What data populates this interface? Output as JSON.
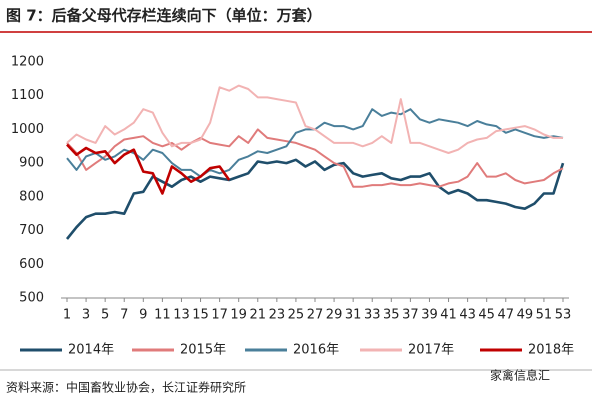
{
  "chart_data": {
    "type": "line",
    "title": "图 7：后备父母代存栏连续向下（单位：万套）",
    "source": "资料来源：中国畜牧业协会，长江证券研究所",
    "watermark": "家禽信息汇",
    "x": [
      1,
      2,
      3,
      4,
      5,
      6,
      7,
      8,
      9,
      10,
      11,
      12,
      13,
      14,
      15,
      16,
      17,
      18,
      19,
      20,
      21,
      22,
      23,
      24,
      25,
      26,
      27,
      28,
      29,
      30,
      31,
      32,
      33,
      34,
      35,
      36,
      37,
      38,
      39,
      40,
      41,
      42,
      43,
      44,
      45,
      46,
      47,
      48,
      49,
      50,
      51,
      52,
      53
    ],
    "xlim": [
      1,
      53
    ],
    "xticks": [
      1,
      3,
      5,
      7,
      9,
      11,
      13,
      15,
      17,
      19,
      21,
      23,
      25,
      27,
      29,
      31,
      33,
      35,
      37,
      39,
      41,
      43,
      45,
      47,
      49,
      51,
      53
    ],
    "ylim": [
      500,
      1200
    ],
    "yticks": [
      500,
      600,
      700,
      800,
      900,
      1000,
      1100,
      1200
    ],
    "legend": "bottom",
    "series": [
      {
        "name": "2014年",
        "color": "#1f4e6b",
        "width": 2.6,
        "values": [
          675,
          710,
          740,
          750,
          750,
          755,
          750,
          810,
          815,
          860,
          845,
          830,
          850,
          860,
          845,
          860,
          855,
          850,
          860,
          870,
          905,
          900,
          905,
          900,
          910,
          890,
          905,
          880,
          895,
          900,
          870,
          860,
          865,
          870,
          855,
          850,
          860,
          860,
          870,
          830,
          810,
          820,
          810,
          790,
          790,
          785,
          780,
          770,
          765,
          780,
          810,
          810,
          900
        ]
      },
      {
        "name": "2015年",
        "color": "#e07b7b",
        "width": 2,
        "values": [
          960,
          930,
          880,
          900,
          920,
          950,
          970,
          975,
          980,
          960,
          950,
          960,
          940,
          960,
          975,
          960,
          955,
          950,
          980,
          960,
          1000,
          975,
          970,
          965,
          960,
          950,
          940,
          920,
          900,
          890,
          830,
          830,
          835,
          835,
          840,
          835,
          835,
          840,
          835,
          830,
          840,
          845,
          860,
          900,
          860,
          860,
          870,
          850,
          840,
          845,
          850,
          870,
          885
        ]
      },
      {
        "name": "2016年",
        "color": "#4a7f9a",
        "width": 2,
        "values": [
          915,
          880,
          920,
          930,
          910,
          920,
          940,
          930,
          910,
          940,
          930,
          900,
          880,
          880,
          860,
          880,
          870,
          880,
          910,
          920,
          935,
          930,
          940,
          950,
          990,
          1000,
          1000,
          1020,
          1010,
          1010,
          1000,
          1010,
          1060,
          1040,
          1050,
          1045,
          1060,
          1030,
          1020,
          1030,
          1025,
          1020,
          1010,
          1025,
          1015,
          1010,
          990,
          1000,
          990,
          980,
          975,
          980,
          975
        ]
      },
      {
        "name": "2017年",
        "color": "#f2b3b3",
        "width": 2,
        "values": [
          960,
          985,
          970,
          960,
          1010,
          985,
          1000,
          1020,
          1060,
          1050,
          990,
          950,
          960,
          960,
          970,
          1020,
          1125,
          1115,
          1130,
          1120,
          1095,
          1095,
          1090,
          1085,
          1080,
          1010,
          1000,
          980,
          960,
          960,
          960,
          950,
          960,
          980,
          960,
          1090,
          960,
          960,
          950,
          940,
          930,
          940,
          960,
          970,
          975,
          995,
          1000,
          1005,
          1010,
          1000,
          985,
          975,
          975
        ]
      },
      {
        "name": "2018年",
        "color": "#c00000",
        "width": 2.6,
        "values": [
          955,
          925,
          945,
          930,
          935,
          900,
          925,
          940,
          875,
          870,
          810,
          890,
          870,
          845,
          860,
          885,
          890,
          850,
          null,
          null,
          null,
          null,
          null,
          null,
          null,
          null,
          null,
          null,
          null,
          null,
          null,
          null,
          null,
          null,
          null,
          null,
          null,
          null,
          null,
          null,
          null,
          null,
          null,
          null,
          null,
          null,
          null,
          null,
          null,
          null,
          null,
          null,
          null
        ]
      }
    ]
  }
}
